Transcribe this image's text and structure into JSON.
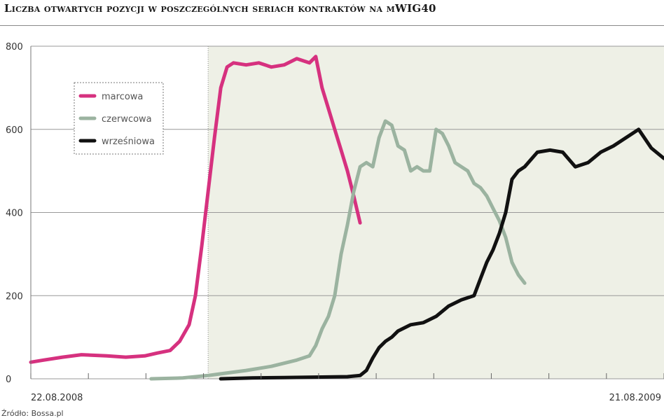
{
  "title": "Liczba otwartych pozycji w poszczególnych seriach kontraktów na mWIG40",
  "source": "Źródło: Bossa.pl",
  "chart_data": {
    "type": "line",
    "title": "Liczba otwartych pozycji w poszczególnych seriach kontraktów na mWIG40",
    "xlabel": "",
    "ylabel": "",
    "ylim": [
      0,
      800
    ],
    "yticks": [
      0,
      200,
      400,
      600,
      800
    ],
    "grid": true,
    "legend": "top-left",
    "x_start_label": "22.08.2008",
    "x_end_label": "21.08.2009",
    "x_range": [
      0,
      1
    ],
    "highlight_from": 0.28,
    "series": [
      {
        "name": "marcowa",
        "color": "#d6317f",
        "x": [
          0,
          0.02,
          0.05,
          0.08,
          0.12,
          0.15,
          0.18,
          0.2,
          0.22,
          0.235,
          0.25,
          0.26,
          0.27,
          0.28,
          0.29,
          0.3,
          0.31,
          0.32,
          0.34,
          0.36,
          0.38,
          0.4,
          0.42,
          0.44,
          0.45,
          0.46,
          0.47,
          0.48,
          0.49,
          0.5,
          0.51,
          0.52
        ],
        "values": [
          40,
          45,
          52,
          58,
          55,
          52,
          55,
          62,
          68,
          90,
          130,
          200,
          320,
          450,
          580,
          700,
          750,
          760,
          755,
          760,
          750,
          755,
          770,
          760,
          775,
          700,
          650,
          600,
          550,
          500,
          440,
          375
        ]
      },
      {
        "name": "czerwcowa",
        "color": "#9bb3a0",
        "x": [
          0.19,
          0.24,
          0.28,
          0.3,
          0.34,
          0.38,
          0.42,
          0.44,
          0.45,
          0.46,
          0.47,
          0.48,
          0.49,
          0.5,
          0.51,
          0.52,
          0.53,
          0.54,
          0.55,
          0.56,
          0.57,
          0.58,
          0.59,
          0.6,
          0.61,
          0.62,
          0.63,
          0.64,
          0.65,
          0.66,
          0.67,
          0.68,
          0.69,
          0.7,
          0.71,
          0.72,
          0.73,
          0.74,
          0.75,
          0.76,
          0.77,
          0.78
        ],
        "values": [
          0,
          2,
          8,
          12,
          20,
          30,
          45,
          55,
          80,
          120,
          150,
          200,
          300,
          370,
          450,
          510,
          520,
          510,
          580,
          620,
          610,
          560,
          550,
          500,
          510,
          500,
          500,
          600,
          590,
          560,
          520,
          510,
          500,
          470,
          460,
          440,
          410,
          380,
          340,
          280,
          250,
          230
        ]
      },
      {
        "name": "wrześniowa",
        "color": "#111111",
        "x": [
          0.3,
          0.35,
          0.4,
          0.45,
          0.5,
          0.52,
          0.53,
          0.54,
          0.55,
          0.56,
          0.57,
          0.58,
          0.6,
          0.62,
          0.64,
          0.66,
          0.68,
          0.7,
          0.71,
          0.72,
          0.73,
          0.74,
          0.75,
          0.76,
          0.77,
          0.78,
          0.8,
          0.82,
          0.84,
          0.86,
          0.88,
          0.9,
          0.92,
          0.94,
          0.96,
          0.98,
          1.0
        ],
        "values": [
          0,
          2,
          3,
          4,
          5,
          8,
          20,
          50,
          75,
          90,
          100,
          115,
          130,
          135,
          150,
          175,
          190,
          200,
          240,
          280,
          310,
          350,
          400,
          480,
          500,
          510,
          545,
          550,
          545,
          510,
          520,
          545,
          560,
          580,
          600,
          555,
          530
        ]
      }
    ]
  }
}
